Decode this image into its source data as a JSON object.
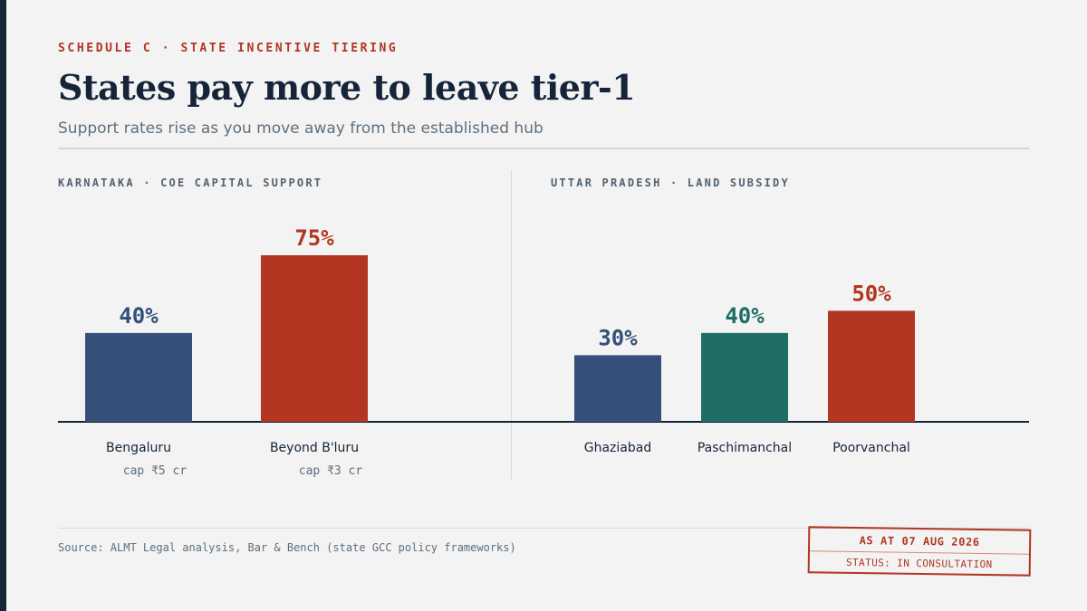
{
  "header": {
    "eyebrow": "SCHEDULE C · STATE INCENTIVE TIERING",
    "title": "States pay more to leave tier-1",
    "subtitle": "Support rates rise as you move away from the established hub"
  },
  "chart_data": [
    {
      "type": "bar",
      "panel_label": "KARNATAKA · COE CAPITAL SUPPORT",
      "categories": [
        "Bengaluru",
        "Beyond B'luru"
      ],
      "values": [
        40,
        75
      ],
      "value_labels": [
        "40%",
        "75%"
      ],
      "sub_labels": [
        "cap ₹5 cr",
        "cap ₹3 cr"
      ],
      "colors": [
        "#34507a",
        "#b23622"
      ],
      "unit": "%",
      "ylim": [
        0,
        75
      ],
      "grid": false,
      "legend": "none"
    },
    {
      "type": "bar",
      "panel_label": "UTTAR PRADESH · LAND SUBSIDY",
      "categories": [
        "Ghaziabad",
        "Paschimanchal",
        "Poorvanchal"
      ],
      "values": [
        30,
        40,
        50
      ],
      "value_labels": [
        "30%",
        "40%",
        "50%"
      ],
      "colors": [
        "#34507a",
        "#1f6e66",
        "#b23622"
      ],
      "unit": "%",
      "ylim": [
        0,
        75
      ],
      "grid": false,
      "legend": "none"
    }
  ],
  "footer": {
    "source": "Source: ALMT Legal analysis, Bar & Bench (state GCC policy frameworks)",
    "stamp_date": "AS AT 07 AUG 2026",
    "stamp_status": "STATUS: IN CONSULTATION"
  }
}
